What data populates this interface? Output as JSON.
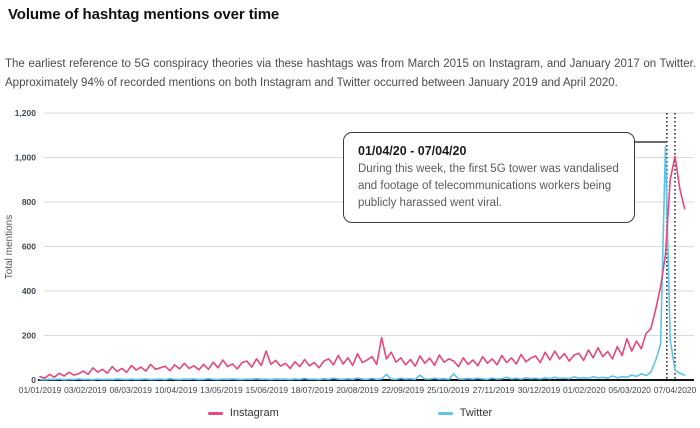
{
  "page": {
    "title": "Volume of hashtag mentions over time",
    "subtitle": "The earliest reference to 5G conspiracy theories via these hashtags was from March 2015 on Instagram, and January 2017 on Twitter. Approximately 94% of recorded mentions on both Instagram and Twitter occurred between January 2019 and April 2020."
  },
  "chart_data": {
    "type": "line",
    "title": "Volume of hashtag mentions over time",
    "xlabel": "",
    "ylabel": "Total mentions",
    "ylim": [
      0,
      1200
    ],
    "grid": "horizontal",
    "legend_position": "bottom",
    "y_tick_values": [
      0,
      200,
      400,
      600,
      800,
      1000,
      1200
    ],
    "y_tick_labels": [
      "0",
      "200",
      "400",
      "600",
      "800",
      "1,000",
      "1,200"
    ],
    "x_tick_labels": [
      "01/01/2019",
      "03/02/2019",
      "08/03/2019",
      "10/04/2019",
      "13/05/2019",
      "15/06/2019",
      "18/07/2019",
      "20/08/2019",
      "22/09/2019",
      "25/10/2019",
      "27/11/2019",
      "30/12/2019",
      "01/02/2020",
      "05/03/2020",
      "07/04/2020"
    ],
    "x_note": "points sampled every ~3.5 days from 01/01/2019; index 132 = 07/04/2020",
    "series": [
      {
        "name": "Instagram",
        "color": "#e5477e",
        "values": [
          15,
          8,
          25,
          12,
          30,
          18,
          35,
          22,
          28,
          40,
          25,
          55,
          35,
          48,
          30,
          60,
          38,
          52,
          34,
          65,
          45,
          58,
          40,
          70,
          48,
          55,
          62,
          42,
          68,
          50,
          75,
          52,
          64,
          46,
          70,
          48,
          80,
          55,
          90,
          60,
          72,
          50,
          78,
          85,
          58,
          95,
          65,
          130,
          70,
          88,
          62,
          75,
          52,
          82,
          60,
          92,
          64,
          78,
          55,
          85,
          95,
          68,
          110,
          72,
          100,
          65,
          118,
          78,
          90,
          105,
          70,
          190,
          95,
          125,
          80,
          100,
          68,
          92,
          62,
          108,
          75,
          98,
          66,
          112,
          80,
          95,
          85,
          60,
          100,
          70,
          90,
          64,
          105,
          75,
          95,
          68,
          110,
          78,
          100,
          72,
          115,
          82,
          98,
          108,
          78,
          125,
          90,
          130,
          95,
          118,
          85,
          112,
          120,
          88,
          135,
          100,
          145,
          105,
          128,
          95,
          150,
          110,
          185,
          130,
          175,
          140,
          210,
          230,
          320,
          420,
          560,
          900,
          1005,
          860,
          770
        ]
      },
      {
        "name": "Twitter",
        "color": "#5fc2ea",
        "values": [
          2,
          1,
          3,
          2,
          4,
          1,
          3,
          2,
          5,
          2,
          3,
          1,
          4,
          2,
          3,
          2,
          5,
          3,
          2,
          4,
          2,
          3,
          5,
          2,
          3,
          4,
          2,
          6,
          3,
          2,
          4,
          3,
          5,
          2,
          3,
          6,
          3,
          2,
          4,
          3,
          5,
          3,
          2,
          4,
          3,
          6,
          3,
          4,
          2,
          5,
          3,
          4,
          2,
          5,
          3,
          7,
          3,
          4,
          2,
          6,
          3,
          8,
          4,
          3,
          6,
          3,
          9,
          4,
          3,
          7,
          3,
          5,
          25,
          4,
          3,
          8,
          4,
          6,
          3,
          22,
          5,
          4,
          8,
          4,
          6,
          3,
          28,
          5,
          4,
          7,
          4,
          8,
          5,
          3,
          9,
          4,
          6,
          12,
          5,
          8,
          4,
          10,
          6,
          8,
          5,
          10,
          6,
          12,
          7,
          9,
          6,
          14,
          8,
          10,
          7,
          15,
          9,
          12,
          8,
          18,
          10,
          15,
          12,
          22,
          16,
          28,
          20,
          35,
          90,
          160,
          1048,
          180,
          45,
          30,
          22
        ]
      }
    ],
    "annotation": {
      "title": "01/04/20 - 07/04/20",
      "body": "During this week, the first 5G tower was vandalised and footage of telecommunications workers being publicly harassed went viral.",
      "marker_dates": [
        "01/04/2020",
        "07/04/2020"
      ],
      "point_indices": [
        130.3,
        132
      ]
    },
    "colors": {
      "grid": "#d9d9d9",
      "axis": "#111111",
      "dotted_marker": "#1a1a1a",
      "tick_text": "#3f4852"
    }
  }
}
